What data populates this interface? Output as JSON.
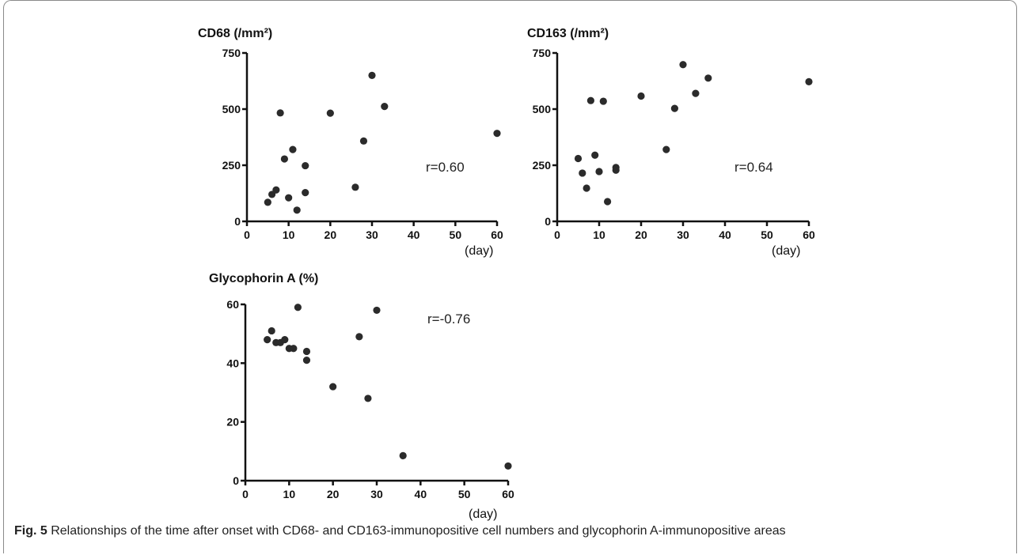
{
  "chart_data": [
    {
      "type": "scatter",
      "title": "CD68 (/mm²)",
      "xlabel": "(day)",
      "ylabel": "",
      "xlim": [
        0,
        60
      ],
      "ylim": [
        0,
        750
      ],
      "xticks": [
        0,
        10,
        20,
        30,
        40,
        50,
        60
      ],
      "yticks": [
        0,
        250,
        500,
        750
      ],
      "annotation": "r=0.60",
      "points": [
        {
          "x": 5,
          "y": 85
        },
        {
          "x": 6,
          "y": 120
        },
        {
          "x": 7,
          "y": 140
        },
        {
          "x": 8,
          "y": 483
        },
        {
          "x": 9,
          "y": 278
        },
        {
          "x": 10,
          "y": 105
        },
        {
          "x": 11,
          "y": 320
        },
        {
          "x": 12,
          "y": 50
        },
        {
          "x": 14,
          "y": 248
        },
        {
          "x": 14,
          "y": 128
        },
        {
          "x": 20,
          "y": 482
        },
        {
          "x": 26,
          "y": 152
        },
        {
          "x": 28,
          "y": 358
        },
        {
          "x": 30,
          "y": 650
        },
        {
          "x": 33,
          "y": 512
        },
        {
          "x": 60,
          "y": 392
        }
      ]
    },
    {
      "type": "scatter",
      "title": "CD163 (/mm²)",
      "xlabel": "(day)",
      "ylabel": "",
      "xlim": [
        0,
        60
      ],
      "ylim": [
        0,
        750
      ],
      "xticks": [
        0,
        10,
        20,
        30,
        40,
        50,
        60
      ],
      "yticks": [
        0,
        250,
        500,
        750
      ],
      "annotation": "r=0.64",
      "points": [
        {
          "x": 5,
          "y": 280
        },
        {
          "x": 6,
          "y": 215
        },
        {
          "x": 7,
          "y": 148
        },
        {
          "x": 8,
          "y": 538
        },
        {
          "x": 9,
          "y": 295
        },
        {
          "x": 10,
          "y": 222
        },
        {
          "x": 11,
          "y": 535
        },
        {
          "x": 12,
          "y": 88
        },
        {
          "x": 14,
          "y": 240
        },
        {
          "x": 14,
          "y": 228
        },
        {
          "x": 20,
          "y": 558
        },
        {
          "x": 26,
          "y": 320
        },
        {
          "x": 28,
          "y": 503
        },
        {
          "x": 30,
          "y": 698
        },
        {
          "x": 33,
          "y": 570
        },
        {
          "x": 36,
          "y": 638
        },
        {
          "x": 60,
          "y": 622
        }
      ]
    },
    {
      "type": "scatter",
      "title": "Glycophorin A (%)",
      "xlabel": "(day)",
      "ylabel": "",
      "xlim": [
        0,
        60
      ],
      "ylim": [
        0,
        60
      ],
      "xticks": [
        0,
        10,
        20,
        30,
        40,
        50,
        60
      ],
      "yticks": [
        0,
        20,
        40,
        60
      ],
      "annotation": "r=-0.76",
      "points": [
        {
          "x": 5,
          "y": 48
        },
        {
          "x": 6,
          "y": 51
        },
        {
          "x": 7,
          "y": 47
        },
        {
          "x": 8,
          "y": 47
        },
        {
          "x": 9,
          "y": 48
        },
        {
          "x": 10,
          "y": 45
        },
        {
          "x": 11,
          "y": 45
        },
        {
          "x": 12,
          "y": 59
        },
        {
          "x": 14,
          "y": 44
        },
        {
          "x": 14,
          "y": 41
        },
        {
          "x": 20,
          "y": 32
        },
        {
          "x": 26,
          "y": 49
        },
        {
          "x": 28,
          "y": 28
        },
        {
          "x": 30,
          "y": 58
        },
        {
          "x": 36,
          "y": 8.5
        },
        {
          "x": 60,
          "y": 5
        }
      ]
    }
  ],
  "caption": {
    "label": "Fig. 5",
    "text": " Relationships of the time after onset with CD68- and CD163-immunopositive cell numbers and glycophorin A-immunopositive areas"
  }
}
